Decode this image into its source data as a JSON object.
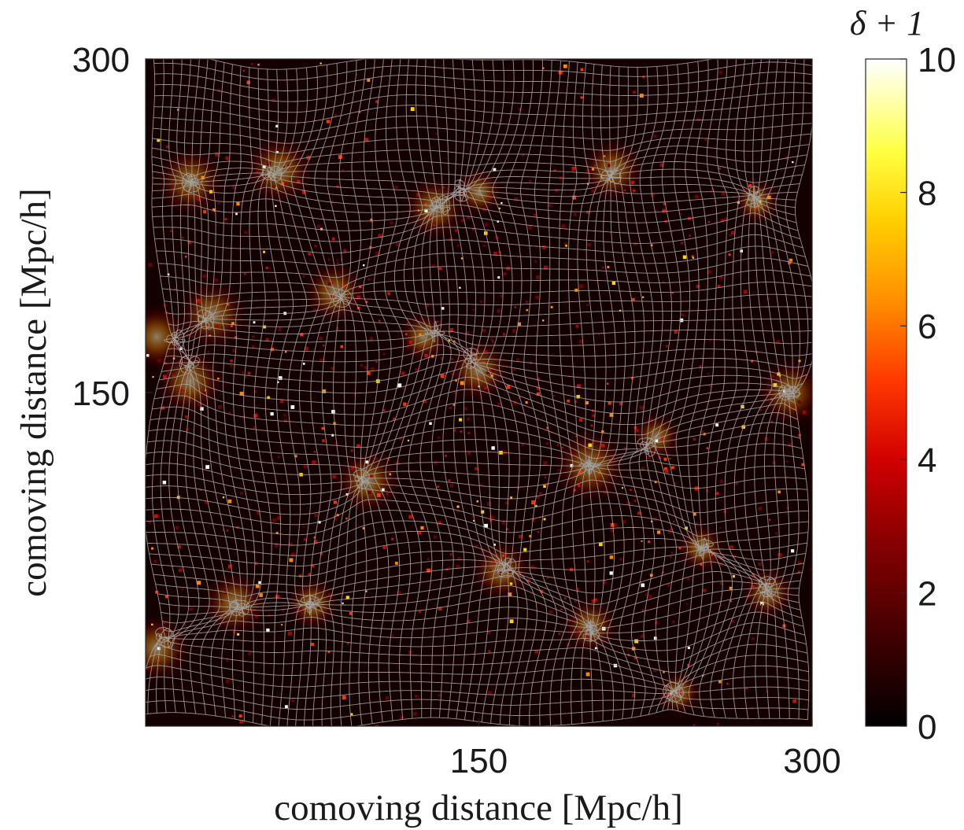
{
  "chart_data": {
    "type": "heatmap",
    "title": "",
    "xlabel": "comoving distance [Mpc/h]",
    "ylabel": "comoving distance [Mpc/h]",
    "xlim": [
      0,
      300
    ],
    "ylim": [
      0,
      300
    ],
    "x_ticks": [
      "150",
      "300"
    ],
    "y_ticks": [
      "150",
      "300"
    ],
    "x_tick_values": [
      150,
      300
    ],
    "y_tick_values": [
      150,
      300
    ],
    "grid": false,
    "overlay": "deformed Lagrangian mesh (gray lines) following the cosmic web",
    "colorbar": {
      "label": "δ + 1",
      "range": [
        0,
        10
      ],
      "ticks": [
        "0",
        "2",
        "4",
        "6",
        "8",
        "10"
      ],
      "tick_values": [
        0,
        2,
        4,
        6,
        8,
        10
      ],
      "colormap": "hot",
      "colors": [
        "#000000",
        "#5a0000",
        "#b30000",
        "#ff2a00",
        "#ff8c00",
        "#ffe600",
        "#ffffd0",
        "#ffffff"
      ]
    },
    "filament_nodes": [
      {
        "x": 85,
        "y": 195
      },
      {
        "x": 125,
        "y": 175
      },
      {
        "x": 150,
        "y": 160
      },
      {
        "x": 200,
        "y": 117
      },
      {
        "x": 130,
        "y": 233
      },
      {
        "x": 210,
        "y": 250
      },
      {
        "x": 275,
        "y": 236
      },
      {
        "x": 30,
        "y": 185
      },
      {
        "x": 5,
        "y": 175
      },
      {
        "x": 20,
        "y": 155
      },
      {
        "x": 40,
        "y": 55
      },
      {
        "x": 75,
        "y": 55
      },
      {
        "x": 5,
        "y": 35
      },
      {
        "x": 150,
        "y": 240
      },
      {
        "x": 160,
        "y": 70
      },
      {
        "x": 250,
        "y": 80
      },
      {
        "x": 230,
        "y": 130
      },
      {
        "x": 290,
        "y": 150
      },
      {
        "x": 60,
        "y": 250
      },
      {
        "x": 20,
        "y": 245
      },
      {
        "x": 240,
        "y": 15
      },
      {
        "x": 200,
        "y": 45
      },
      {
        "x": 100,
        "y": 110
      },
      {
        "x": 280,
        "y": 60
      }
    ]
  }
}
